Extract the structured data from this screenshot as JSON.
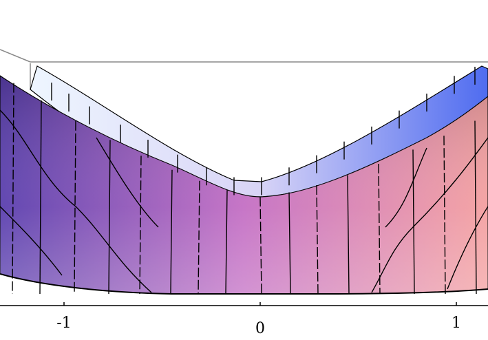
{
  "chart_data": {
    "type": "surface3d",
    "axis": {
      "ticks": [
        {
          "value": -1,
          "label": "-1"
        },
        {
          "value": 0,
          "label": "0"
        },
        {
          "value": 1,
          "label": "1"
        }
      ]
    },
    "colors": {
      "surface_left": "#5a3fae",
      "surface_mid": "#c46fc4",
      "surface_right": "#f4a0a0",
      "band_left": "#eef6ff",
      "band_right": "#4f6cf0",
      "frame": "#888888",
      "mesh": "#000000"
    }
  }
}
